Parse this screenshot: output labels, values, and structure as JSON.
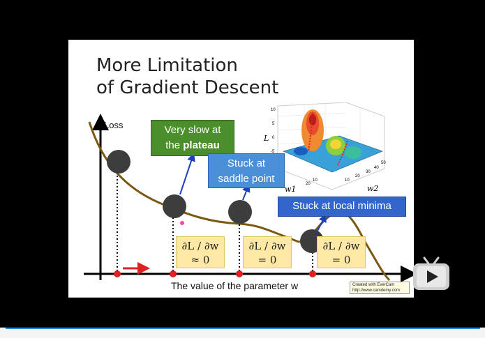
{
  "slide": {
    "title_line1": "More Limitation",
    "title_line2": "of Gradient Descent",
    "y_axis_label": "Loss",
    "x_axis_label": "The value of the parameter w",
    "callouts": {
      "plateau_part1": "Very slow at",
      "plateau_part2": "the ",
      "plateau_bold": "plateau",
      "saddle_line1": "Stuck at",
      "saddle_line2": "saddle point",
      "local_min": "Stuck at local minima"
    },
    "derivatives": [
      {
        "top": "∂L / ∂w",
        "bottom": "≈ 0"
      },
      {
        "top": "∂L / ∂w",
        "bottom": "= 0"
      },
      {
        "top": "∂L / ∂w",
        "bottom": "= 0"
      }
    ],
    "surface_plot": {
      "z_label": "L",
      "w1_label": "w1",
      "w2_label": "w2",
      "z_ticks": [
        "10",
        "5",
        "0",
        "-5"
      ],
      "w1_ticks": [
        "10",
        "20"
      ],
      "w2_ticks": [
        "10",
        "20",
        "30",
        "40",
        "50"
      ]
    },
    "watermark": {
      "line1": "Created with EverCam",
      "line2": "http://www.camdemy.com"
    }
  },
  "colors": {
    "curve": "#7a5a12",
    "plateau_box": "#4a8f2c",
    "saddle_box": "#4a90d9",
    "local_box": "#3366cc",
    "marker": "#e02020",
    "ball": "#3d3d3d"
  },
  "player": {
    "control_icon": "play-icon"
  }
}
